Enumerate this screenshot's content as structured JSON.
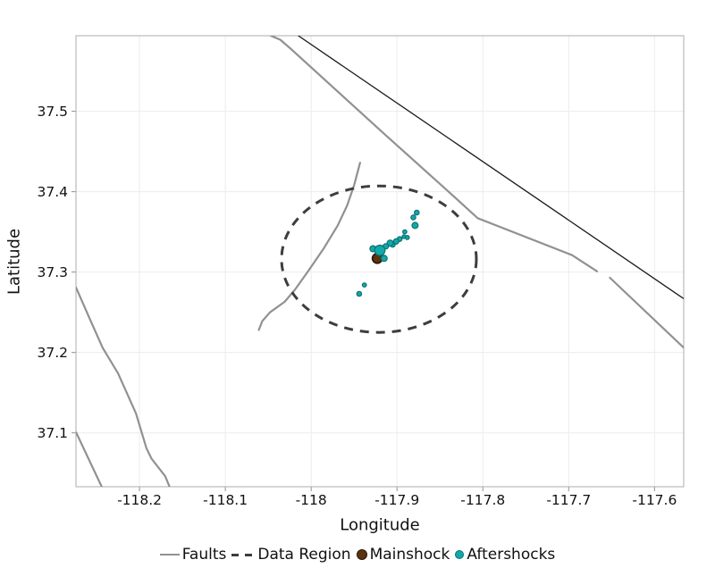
{
  "figure": {
    "background": "#ffffff",
    "plot_border_color": "#adadad",
    "grid_color": "#ececec",
    "tick_mark_color": "#8f8f8f",
    "text_color": "#111111"
  },
  "chart_data": {
    "type": "scatter",
    "title": "",
    "xlabel": "Longitude",
    "ylabel": "Latitude",
    "xlim": [
      -118.274,
      -117.566
    ],
    "ylim": [
      37.033,
      37.594
    ],
    "grid": true,
    "legend_position": "bottom",
    "xticks": [
      -118.2,
      -118.1,
      -118.0,
      -117.9,
      -117.8,
      -117.7,
      -117.6
    ],
    "xtick_labels": [
      "-118.2",
      "-118.1",
      "-118",
      "-117.9",
      "-117.8",
      "-117.7",
      "-117.6"
    ],
    "yticks": [
      37.1,
      37.2,
      37.3,
      37.4,
      37.5
    ],
    "ytick_labels": [
      "37.1",
      "37.2",
      "37.3",
      "37.4",
      "37.5"
    ],
    "series": [
      {
        "id": "faults",
        "name": "Faults",
        "type": "line",
        "color": "#919191",
        "width": 2.2,
        "lines": [
          [
            [
              -118.047,
              37.594
            ],
            [
              -118.036,
              37.589
            ],
            [
              -118.024,
              37.578
            ],
            [
              -117.915,
              37.472
            ],
            [
              -117.842,
              37.402
            ],
            [
              -117.806,
              37.367
            ],
            [
              -117.696,
              37.321
            ],
            [
              -117.667,
              37.301
            ]
          ],
          [
            [
              -117.652,
              37.293
            ],
            [
              -117.566,
              37.206
            ]
          ],
          [
            [
              -117.943,
              37.436
            ],
            [
              -117.95,
              37.408
            ],
            [
              -117.958,
              37.383
            ],
            [
              -117.969,
              37.358
            ],
            [
              -117.985,
              37.33
            ],
            [
              -118.003,
              37.302
            ],
            [
              -118.019,
              37.278
            ],
            [
              -118.031,
              37.263
            ],
            [
              -118.048,
              37.25
            ],
            [
              -118.057,
              37.239
            ],
            [
              -118.061,
              37.228
            ]
          ],
          [
            [
              -118.274,
              37.281
            ],
            [
              -118.258,
              37.242
            ],
            [
              -118.243,
              37.206
            ],
            [
              -118.225,
              37.174
            ],
            [
              -118.204,
              37.124
            ],
            [
              -118.192,
              37.081
            ],
            [
              -118.186,
              37.068
            ],
            [
              -118.17,
              37.046
            ],
            [
              -118.165,
              37.033
            ]
          ],
          [
            [
              -118.274,
              37.101
            ],
            [
              -118.244,
              37.033
            ]
          ]
        ]
      },
      {
        "id": "boundary-line",
        "name": "Boundary",
        "type": "line",
        "color": "#1a1a1a",
        "width": 1.3,
        "lines": [
          [
            [
              -118.015,
              37.594
            ],
            [
              -117.566,
              37.267
            ]
          ]
        ]
      },
      {
        "id": "data-region",
        "name": "Data Region",
        "type": "ellipse",
        "color": "#3d3d3d",
        "width": 3,
        "dash": "10 8",
        "center": [
          -117.921,
          37.316
        ],
        "rx_deg": 0.1135,
        "ry_deg": 0.0911
      },
      {
        "id": "mainshock",
        "name": "Mainshock",
        "type": "scatter",
        "fill": "#5a3312",
        "stroke": "#2a1605",
        "stroke_width": 1.6,
        "points": [
          {
            "lon": -117.923,
            "lat": 37.317,
            "r": 5.5
          }
        ]
      },
      {
        "id": "aftershocks",
        "name": "Aftershocks",
        "type": "scatter",
        "fill": "#13a8a9",
        "stroke": "#0b7374",
        "stroke_width": 1.2,
        "points": [
          {
            "lon": -117.877,
            "lat": 37.374,
            "r": 2.7
          },
          {
            "lon": -117.881,
            "lat": 37.368,
            "r": 2.7
          },
          {
            "lon": -117.879,
            "lat": 37.358,
            "r": 3.4
          },
          {
            "lon": -117.891,
            "lat": 37.35,
            "r": 2.3
          },
          {
            "lon": -117.888,
            "lat": 37.343,
            "r": 2.3
          },
          {
            "lon": -117.892,
            "lat": 37.344,
            "r": 2.0
          },
          {
            "lon": -117.897,
            "lat": 37.341,
            "r": 2.7
          },
          {
            "lon": -117.901,
            "lat": 37.338,
            "r": 3.0
          },
          {
            "lon": -117.905,
            "lat": 37.334,
            "r": 2.7
          },
          {
            "lon": -117.908,
            "lat": 37.336,
            "r": 3.4
          },
          {
            "lon": -117.913,
            "lat": 37.332,
            "r": 3.0
          },
          {
            "lon": -117.928,
            "lat": 37.329,
            "r": 3.4
          },
          {
            "lon": -117.92,
            "lat": 37.327,
            "r": 5.8
          },
          {
            "lon": -117.915,
            "lat": 37.317,
            "r": 3.4
          },
          {
            "lon": -117.938,
            "lat": 37.284,
            "r": 2.3
          },
          {
            "lon": -117.944,
            "lat": 37.273,
            "r": 2.7
          }
        ]
      }
    ]
  },
  "legend": {
    "items": [
      {
        "label": "Faults",
        "swatch": "line",
        "color": "#919191"
      },
      {
        "label": "Data Region",
        "swatch": "dash",
        "color": "#3d3d3d"
      },
      {
        "label": "Mainshock",
        "swatch": "dot",
        "color": "#5a3312",
        "border": "#2a1605",
        "size": 12
      },
      {
        "label": "Aftershocks",
        "swatch": "dot",
        "color": "#13a8a9",
        "border": "#0b7374",
        "size": 10
      }
    ]
  }
}
